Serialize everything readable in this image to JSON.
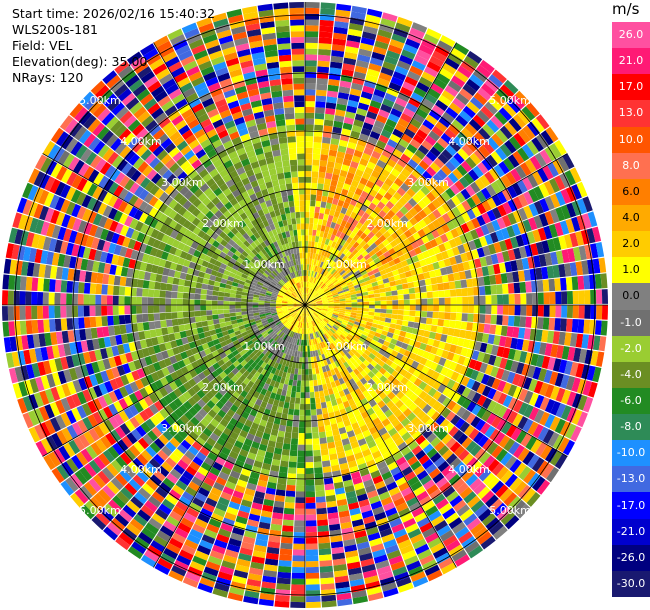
{
  "info": {
    "start_time": "Start time: 2026/02/16 15:40:32",
    "station": "WLS200s-181",
    "field": "Field: VEL",
    "elevation": "Elevation(deg): 35.00",
    "nrays": "NRays: 120"
  },
  "chart_data": {
    "type": "heatmap",
    "projection": "polar PPI",
    "field": "VEL",
    "nrays": 120,
    "range_rings_km": [
      "1.00km",
      "2.00km",
      "3.00km",
      "4.00km",
      "5.00km"
    ],
    "colorbar": {
      "unit": "m/s",
      "labels": [
        "26.0",
        "21.0",
        "17.0",
        "13.0",
        "10.0",
        "8.0",
        "6.0",
        "4.0",
        "2.0",
        "1.0",
        "0.0",
        "-1.0",
        "-2.0",
        "-4.0",
        "-6.0",
        "-8.0",
        "-10.0",
        "-13.0",
        "-17.0",
        "-21.0",
        "-26.0",
        "-30.0"
      ],
      "colors": [
        "#ff50a0",
        "#ff1a75",
        "#ff0000",
        "#ff3333",
        "#ff5500",
        "#ff7050",
        "#ff7f00",
        "#ffaa00",
        "#ffcc00",
        "#ffff00",
        "#808080",
        "#707070",
        "#9acd32",
        "#6b8e23",
        "#228b22",
        "#2e8b57",
        "#1e90ff",
        "#4169e1",
        "#0000ff",
        "#0000cd",
        "#000080",
        "#191970"
      ]
    }
  }
}
